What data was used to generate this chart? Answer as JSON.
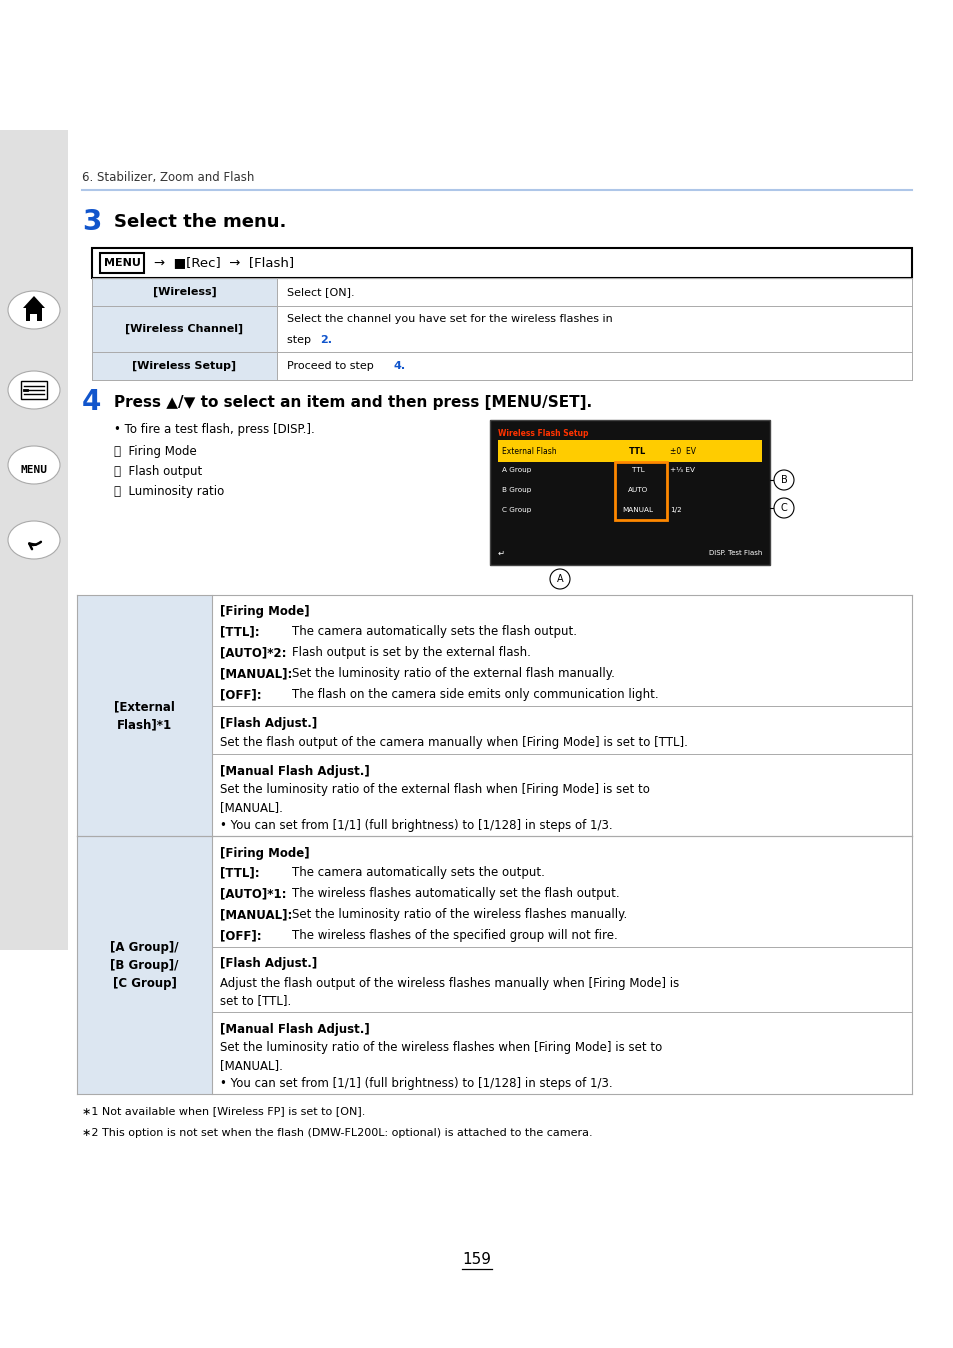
{
  "page_bg": "#ffffff",
  "sidebar_bg": "#e0e0e0",
  "chapter_text": "6. Stabilizer, Zoom and Flash",
  "step3_num": "3",
  "step3_text": "Select the menu.",
  "menu_bar_text": "MENU →  □[Rec] → [Flash]",
  "table1_rows": [
    {
      "label": "[Wireless]",
      "content": "Select [ON]."
    },
    {
      "label": "[Wireless Channel]",
      "content": "Select the channel you have set for the wireless flashes in step 2."
    },
    {
      "label": "[Wireless Setup]",
      "content": "Proceed to step 4."
    }
  ],
  "step4_num": "4",
  "step4_text": "Press ▲/▼ to select an item and then press [MENU/SET].",
  "bullet1": "• To fire a test flash, press [DISP.].",
  "label_A": "Firing Mode",
  "label_B": "Flash output",
  "label_C": "Luminosity ratio",
  "ext_flash_sections": [
    {
      "header": "[Firing Mode]",
      "items": [
        {
          "label": "[TTL]:",
          "text": "The camera automatically sets the flash output."
        },
        {
          "label": "[AUTO]*2:",
          "text": "Flash output is set by the external flash."
        },
        {
          "label": "[MANUAL]:",
          "text": "Set the luminosity ratio of the external flash manually."
        },
        {
          "label": "[OFF]:",
          "text": "The flash on the camera side emits only communication light."
        }
      ]
    },
    {
      "header": "[Flash Adjust.]",
      "items": [
        {
          "label": "",
          "text": "Set the flash output of the camera manually when [Firing Mode] is set to [TTL]."
        }
      ]
    },
    {
      "header": "[Manual Flash Adjust.]",
      "items": [
        {
          "label": "",
          "text": "Set the luminosity ratio of the external flash when [Firing Mode] is set to\n[MANUAL].\n• You can set from [1/1] (full brightness) to [1/128] in steps of 1/3."
        }
      ]
    }
  ],
  "group_abc_sections": [
    {
      "header": "[Firing Mode]",
      "items": [
        {
          "label": "[TTL]:",
          "text": "The camera automatically sets the output."
        },
        {
          "label": "[AUTO]*1:",
          "text": "The wireless flashes automatically set the flash output."
        },
        {
          "label": "[MANUAL]:",
          "text": "Set the luminosity ratio of the wireless flashes manually."
        },
        {
          "label": "[OFF]:",
          "text": "The wireless flashes of the specified group will not fire."
        }
      ]
    },
    {
      "header": "[Flash Adjust.]",
      "items": [
        {
          "label": "",
          "text": "Adjust the flash output of the wireless flashes manually when [Firing Mode] is\nset to [TTL]."
        }
      ]
    },
    {
      "header": "[Manual Flash Adjust.]",
      "items": [
        {
          "label": "",
          "text": "Set the luminosity ratio of the wireless flashes when [Firing Mode] is set to\n[MANUAL].\n• You can set from [1/1] (full brightness) to [1/128] in steps of 1/3."
        }
      ]
    }
  ],
  "footnotes": [
    "∗1 Not available when [Wireless FP] is set to [ON].",
    "∗2 This option is not set when the flash (DMW-FL200L: optional) is attached to the camera."
  ],
  "page_number": "159",
  "blue_color": "#1155cc",
  "step_num_color": "#1155cc",
  "header_line_color": "#aec6e8",
  "table_header_bg": "#dce6f1",
  "table_border": "#aaaaaa"
}
